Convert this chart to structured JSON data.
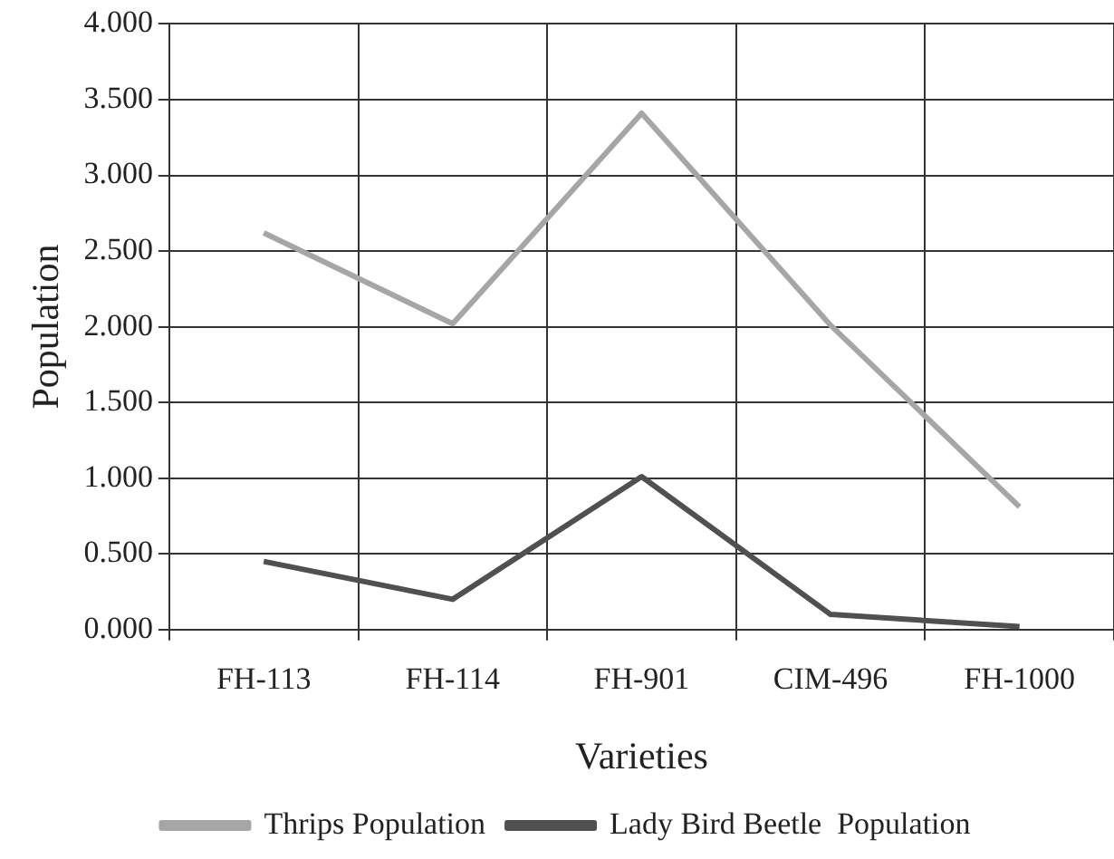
{
  "chart_data": {
    "type": "line",
    "xlabel": "Varieties",
    "ylabel": "Population",
    "categories": [
      "FH-113",
      "FH-114",
      "FH-901",
      "CIM-496",
      "FH-1000"
    ],
    "series": [
      {
        "name": "Thrips Population",
        "color": "#a6a6a8",
        "values": [
          2.62,
          2.02,
          3.41,
          2.01,
          0.81
        ]
      },
      {
        "name": "Lady Bird Beetle  Population",
        "color": "#505050",
        "values": [
          0.45,
          0.2,
          1.01,
          0.1,
          0.02
        ]
      }
    ],
    "ylim": [
      0,
      4
    ],
    "yticks": [
      {
        "value": 0,
        "label": "0.000"
      },
      {
        "value": 0.5,
        "label": "0.500"
      },
      {
        "value": 1,
        "label": "1.000"
      },
      {
        "value": 1.5,
        "label": "1.500"
      },
      {
        "value": 2,
        "label": "2.000"
      },
      {
        "value": 2.5,
        "label": "2.500"
      },
      {
        "value": 3,
        "label": "3.000"
      },
      {
        "value": 3.5,
        "label": "3.500"
      },
      {
        "value": 4,
        "label": "4.000"
      }
    ],
    "grid": true,
    "legend": "bottom",
    "marker": "none",
    "line_style": "solid"
  }
}
